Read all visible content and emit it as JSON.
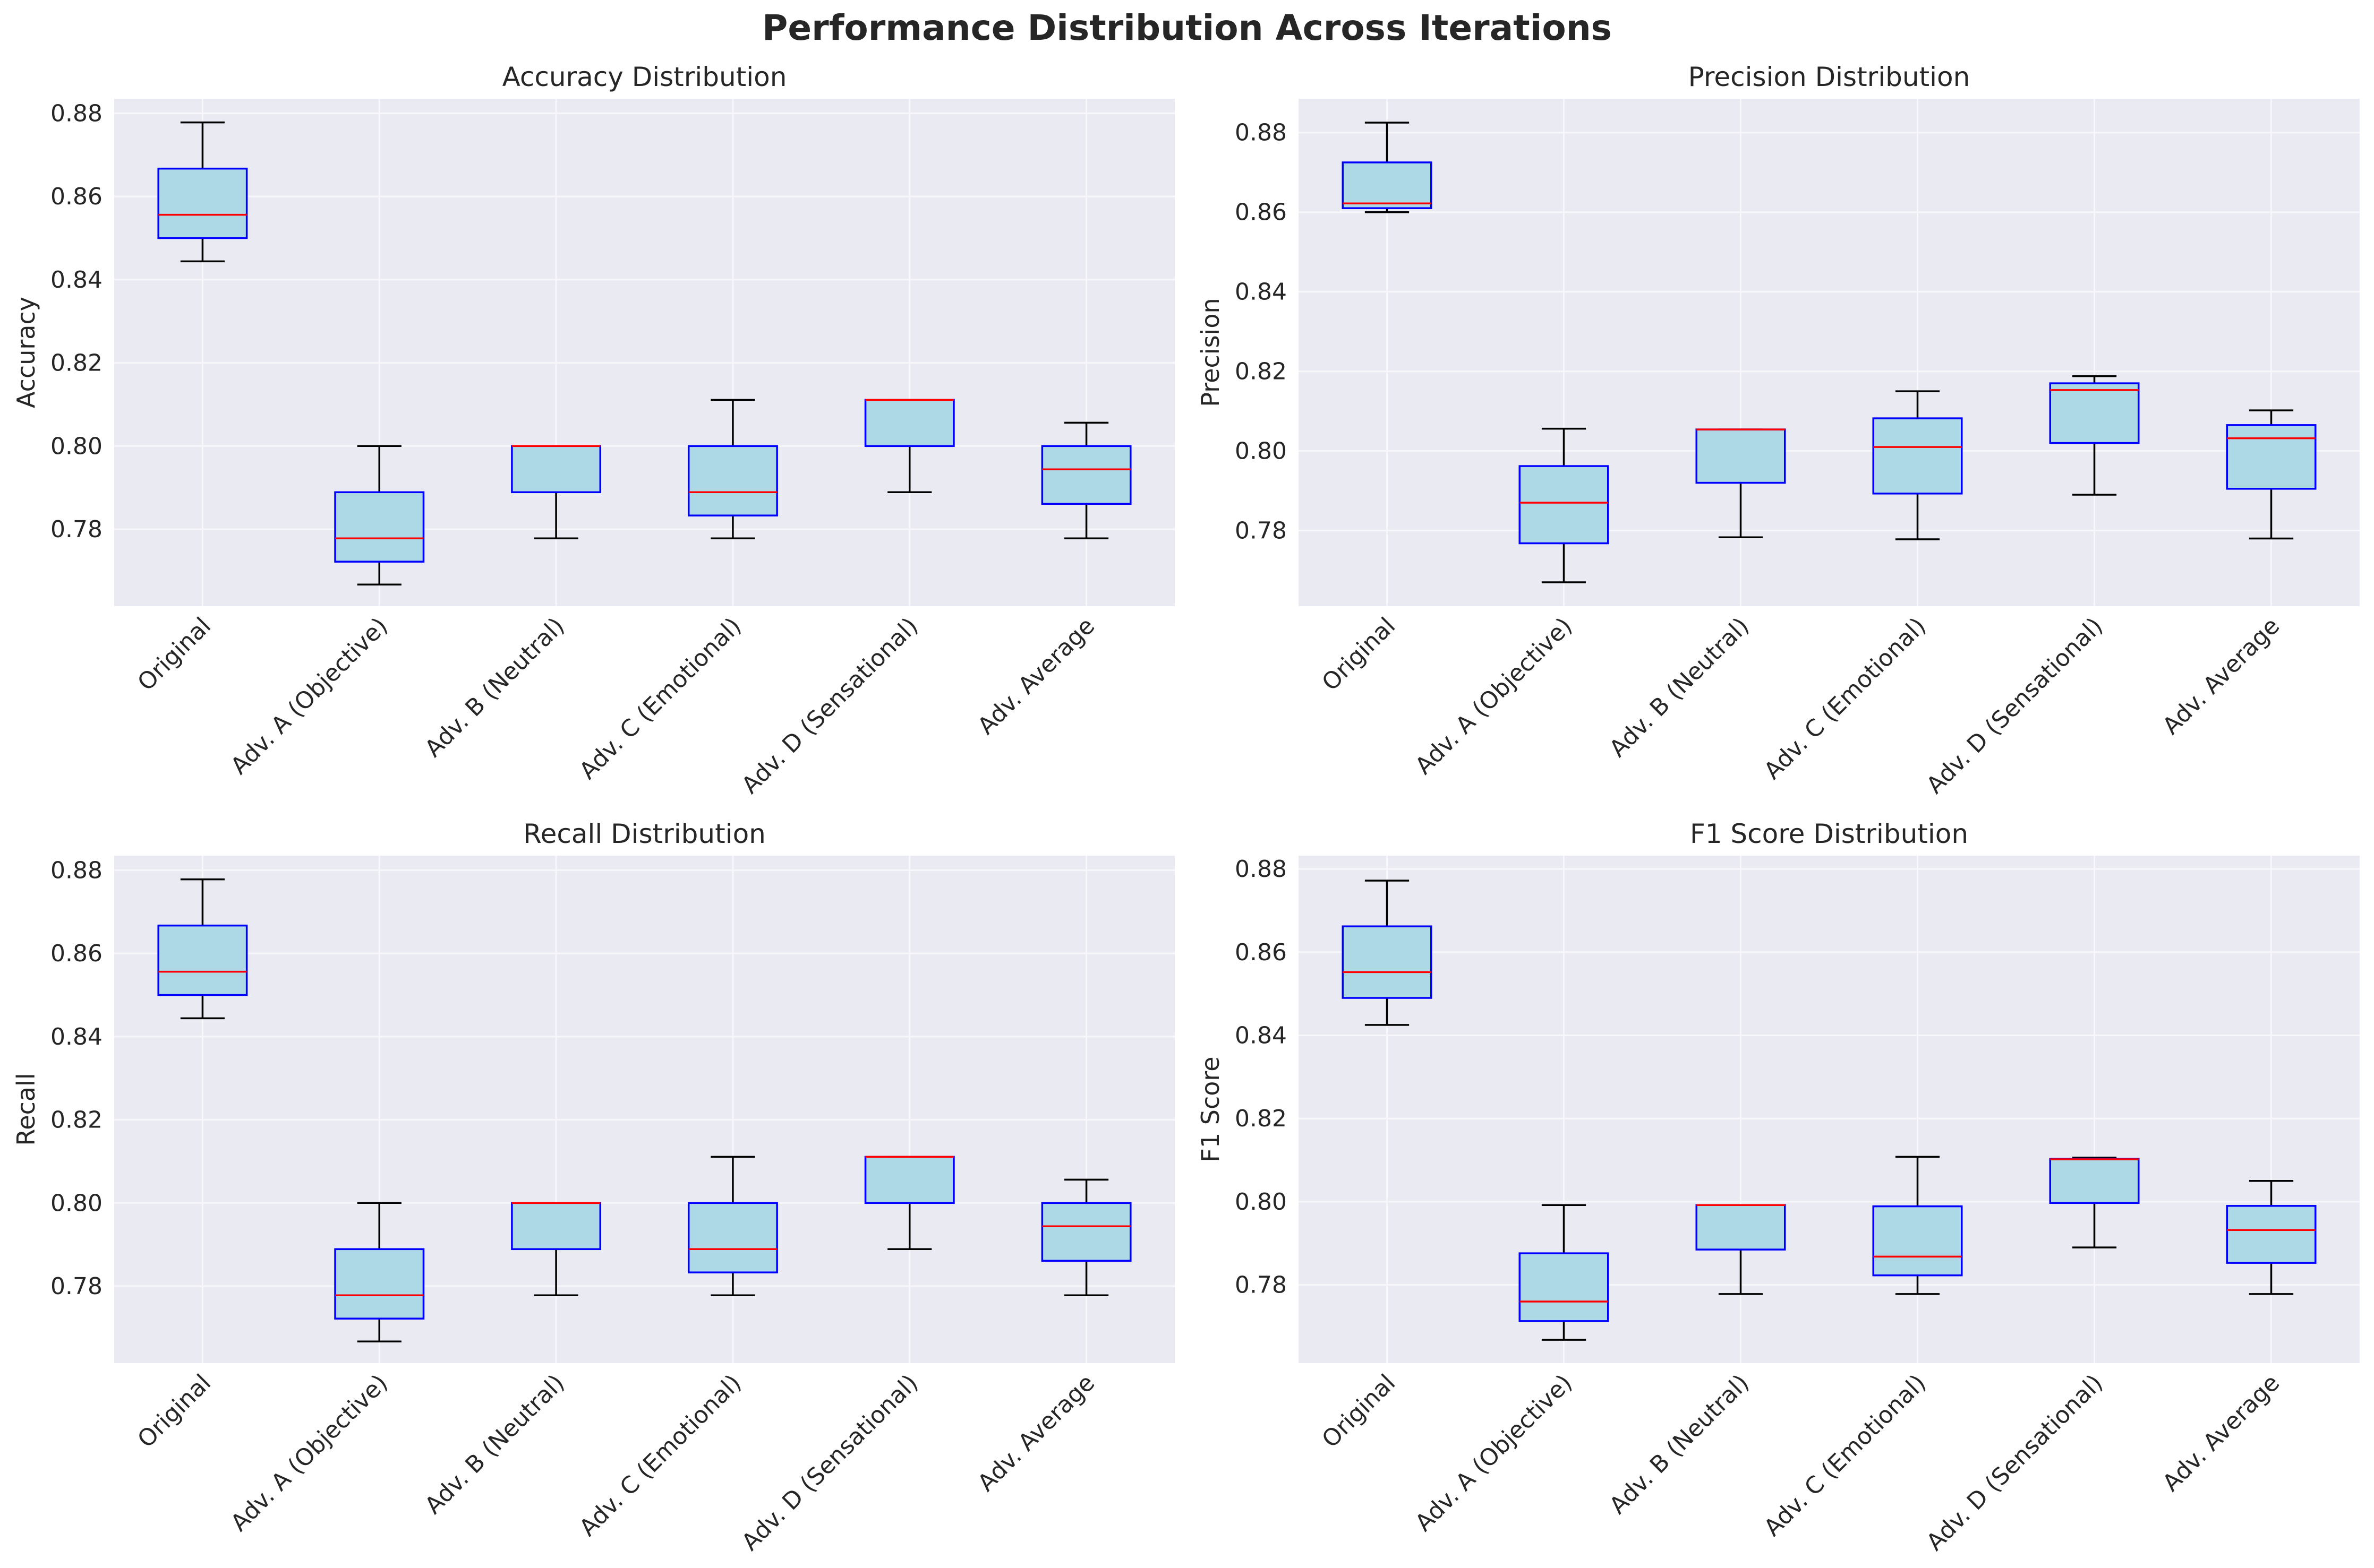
{
  "figure": {
    "title": "Performance Distribution Across Iterations",
    "colors": {
      "plot_background": "#eaeaf2",
      "grid": "#f7f7fb",
      "box_fill": "#add8e6",
      "box_edge": "#0000ff",
      "median": "#ff0000",
      "whisker": "#000000"
    }
  },
  "chart_data": [
    {
      "type": "box",
      "title": "Accuracy Distribution",
      "xlabel": "",
      "ylabel": "Accuracy",
      "ylim": [
        0.7615,
        0.8835
      ],
      "yticks": [
        0.78,
        0.8,
        0.82,
        0.84,
        0.86,
        0.88
      ],
      "grid": true,
      "categories": [
        "Original",
        "Adv. A (Objective)",
        "Adv. B (Neutral)",
        "Adv. C (Emotional)",
        "Adv. D (Sensational)",
        "Adv. Average"
      ],
      "boxes": [
        {
          "whislo": 0.8444,
          "q1": 0.85,
          "med": 0.8556,
          "q3": 0.8667,
          "whishi": 0.8778
        },
        {
          "whislo": 0.7667,
          "q1": 0.7722,
          "med": 0.7778,
          "q3": 0.7889,
          "whishi": 0.8
        },
        {
          "whislo": 0.7778,
          "q1": 0.7889,
          "med": 0.8,
          "q3": 0.8,
          "whishi": 0.8
        },
        {
          "whislo": 0.7778,
          "q1": 0.7833,
          "med": 0.7889,
          "q3": 0.8,
          "whishi": 0.8111
        },
        {
          "whislo": 0.7889,
          "q1": 0.8,
          "med": 0.8111,
          "q3": 0.8111,
          "whishi": 0.8111
        },
        {
          "whislo": 0.7778,
          "q1": 0.7861,
          "med": 0.7944,
          "q3": 0.8,
          "whishi": 0.8056
        }
      ]
    },
    {
      "type": "box",
      "title": "Precision Distribution",
      "xlabel": "",
      "ylabel": "Precision",
      "ylim": [
        0.761,
        0.8885
      ],
      "yticks": [
        0.78,
        0.8,
        0.82,
        0.84,
        0.86,
        0.88
      ],
      "grid": true,
      "categories": [
        "Original",
        "Adv. A (Objective)",
        "Adv. B (Neutral)",
        "Adv. C (Emotional)",
        "Adv. D (Sensational)",
        "Adv. Average"
      ],
      "boxes": [
        {
          "whislo": 0.86,
          "q1": 0.861,
          "med": 0.8622,
          "q3": 0.8725,
          "whishi": 0.8825
        },
        {
          "whislo": 0.767,
          "q1": 0.7768,
          "med": 0.787,
          "q3": 0.7962,
          "whishi": 0.8056
        },
        {
          "whislo": 0.7783,
          "q1": 0.792,
          "med": 0.8054,
          "q3": 0.8054,
          "whishi": 0.8054
        },
        {
          "whislo": 0.7778,
          "q1": 0.7893,
          "med": 0.801,
          "q3": 0.8082,
          "whishi": 0.815
        },
        {
          "whislo": 0.789,
          "q1": 0.802,
          "med": 0.8153,
          "q3": 0.817,
          "whishi": 0.8188
        },
        {
          "whislo": 0.778,
          "q1": 0.7905,
          "med": 0.8032,
          "q3": 0.8065,
          "whishi": 0.8102
        }
      ]
    },
    {
      "type": "box",
      "title": "Recall Distribution",
      "xlabel": "",
      "ylabel": "Recall",
      "ylim": [
        0.7615,
        0.8835
      ],
      "yticks": [
        0.78,
        0.8,
        0.82,
        0.84,
        0.86,
        0.88
      ],
      "grid": true,
      "categories": [
        "Original",
        "Adv. A (Objective)",
        "Adv. B (Neutral)",
        "Adv. C (Emotional)",
        "Adv. D (Sensational)",
        "Adv. Average"
      ],
      "boxes": [
        {
          "whislo": 0.8444,
          "q1": 0.85,
          "med": 0.8556,
          "q3": 0.8667,
          "whishi": 0.8778
        },
        {
          "whislo": 0.7667,
          "q1": 0.7722,
          "med": 0.7778,
          "q3": 0.7889,
          "whishi": 0.8
        },
        {
          "whislo": 0.7778,
          "q1": 0.7889,
          "med": 0.8,
          "q3": 0.8,
          "whishi": 0.8
        },
        {
          "whislo": 0.7778,
          "q1": 0.7833,
          "med": 0.7889,
          "q3": 0.8,
          "whishi": 0.8111
        },
        {
          "whislo": 0.7889,
          "q1": 0.8,
          "med": 0.8111,
          "q3": 0.8111,
          "whishi": 0.8111
        },
        {
          "whislo": 0.7778,
          "q1": 0.7861,
          "med": 0.7944,
          "q3": 0.8,
          "whishi": 0.8056
        }
      ]
    },
    {
      "type": "box",
      "title": "F1 Score Distribution",
      "xlabel": "",
      "ylabel": "F1 Score",
      "ylim": [
        0.7612,
        0.8832
      ],
      "yticks": [
        0.78,
        0.8,
        0.82,
        0.84,
        0.86,
        0.88
      ],
      "grid": true,
      "categories": [
        "Original",
        "Adv. A (Objective)",
        "Adv. B (Neutral)",
        "Adv. C (Emotional)",
        "Adv. D (Sensational)",
        "Adv. Average"
      ],
      "boxes": [
        {
          "whislo": 0.8425,
          "q1": 0.849,
          "med": 0.8552,
          "q3": 0.8662,
          "whishi": 0.8772
        },
        {
          "whislo": 0.7668,
          "q1": 0.7713,
          "med": 0.776,
          "q3": 0.7876,
          "whishi": 0.7992
        },
        {
          "whislo": 0.7778,
          "q1": 0.7885,
          "med": 0.7992,
          "q3": 0.7992,
          "whishi": 0.7992
        },
        {
          "whislo": 0.7778,
          "q1": 0.7823,
          "med": 0.7868,
          "q3": 0.7989,
          "whishi": 0.8108
        },
        {
          "whislo": 0.789,
          "q1": 0.7997,
          "med": 0.8102,
          "q3": 0.8103,
          "whishi": 0.8106
        },
        {
          "whislo": 0.7778,
          "q1": 0.7853,
          "med": 0.7932,
          "q3": 0.799,
          "whishi": 0.805
        }
      ]
    }
  ]
}
